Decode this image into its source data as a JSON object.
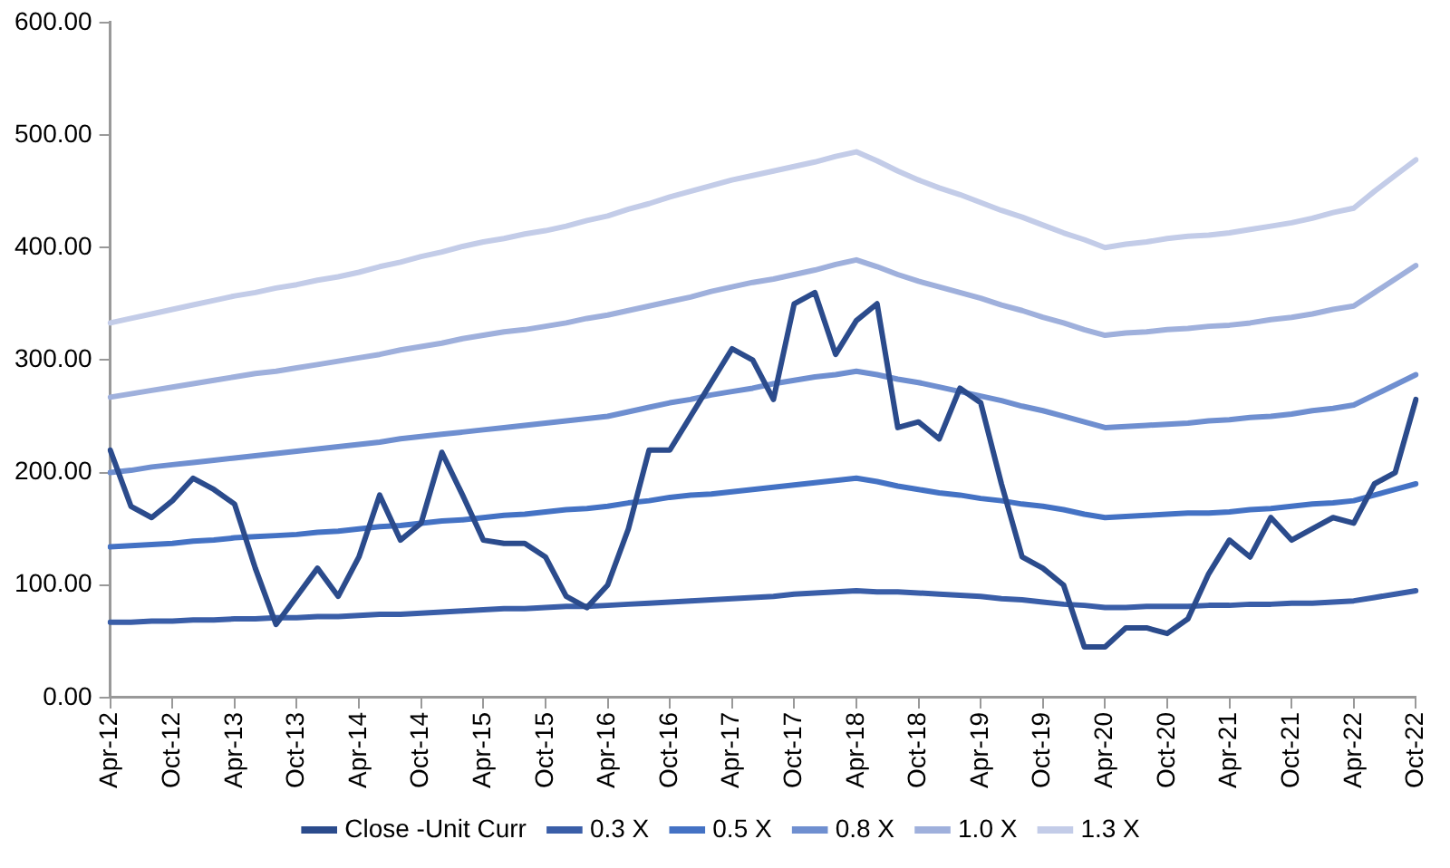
{
  "chart_data": {
    "type": "line",
    "categories": [
      "Apr-12",
      null,
      null,
      "Oct-12",
      null,
      null,
      "Apr-13",
      null,
      null,
      "Oct-13",
      null,
      null,
      "Apr-14",
      null,
      null,
      "Oct-14",
      null,
      null,
      "Apr-15",
      null,
      null,
      "Oct-15",
      null,
      null,
      "Apr-16",
      null,
      null,
      "Oct-16",
      null,
      null,
      "Apr-17",
      null,
      null,
      "Oct-17",
      null,
      null,
      "Apr-18",
      null,
      null,
      "Oct-18",
      null,
      null,
      "Apr-19",
      null,
      null,
      "Oct-19",
      null,
      null,
      "Apr-20",
      null,
      null,
      "Oct-20",
      null,
      null,
      "Apr-21",
      null,
      null,
      "Oct-21",
      null,
      null,
      "Apr-22",
      null,
      null,
      "Oct-22"
    ],
    "series": [
      {
        "name": "Close -Unit Curr",
        "color": "#2b4b8c",
        "values": [
          220,
          170,
          160,
          175,
          195,
          185,
          172,
          115,
          65,
          90,
          115,
          90,
          125,
          180,
          140,
          155,
          218,
          180,
          140,
          137,
          137,
          125,
          90,
          80,
          100,
          150,
          220,
          220,
          250,
          280,
          310,
          300,
          265,
          350,
          360,
          305,
          335,
          350,
          240,
          245,
          230,
          275,
          262,
          190,
          125,
          115,
          100,
          45,
          45,
          62,
          62,
          57,
          70,
          110,
          140,
          125,
          160,
          140,
          150,
          160,
          155,
          190,
          200,
          265
        ]
      },
      {
        "name": "0.3 X",
        "color": "#3a5ea8",
        "values": [
          67,
          67,
          68,
          68,
          69,
          69,
          70,
          70,
          71,
          71,
          72,
          72,
          73,
          74,
          74,
          75,
          76,
          77,
          78,
          79,
          79,
          80,
          81,
          81,
          82,
          83,
          84,
          85,
          86,
          87,
          88,
          89,
          90,
          92,
          93,
          94,
          95,
          94,
          94,
          93,
          92,
          91,
          90,
          88,
          87,
          85,
          83,
          82,
          80,
          80,
          81,
          81,
          81,
          82,
          82,
          83,
          83,
          84,
          84,
          85,
          86,
          89,
          92,
          95
        ]
      },
      {
        "name": "0.5 X",
        "color": "#4472c4",
        "values": [
          134,
          135,
          136,
          137,
          139,
          140,
          142,
          143,
          144,
          145,
          147,
          148,
          150,
          152,
          153,
          155,
          157,
          158,
          160,
          162,
          163,
          165,
          167,
          168,
          170,
          173,
          175,
          178,
          180,
          181,
          183,
          185,
          187,
          189,
          191,
          193,
          195,
          192,
          188,
          185,
          182,
          180,
          177,
          175,
          172,
          170,
          167,
          163,
          160,
          161,
          162,
          163,
          164,
          164,
          165,
          167,
          168,
          170,
          172,
          173,
          175,
          180,
          185,
          190
        ]
      },
      {
        "name": "0.8 X",
        "color": "#6f8fd0",
        "values": [
          200,
          202,
          205,
          207,
          209,
          211,
          213,
          215,
          217,
          219,
          221,
          223,
          225,
          227,
          230,
          232,
          234,
          236,
          238,
          240,
          242,
          244,
          246,
          248,
          250,
          254,
          258,
          262,
          265,
          269,
          272,
          275,
          279,
          282,
          285,
          287,
          290,
          287,
          283,
          280,
          276,
          272,
          268,
          264,
          259,
          255,
          250,
          245,
          240,
          241,
          242,
          243,
          244,
          246,
          247,
          249,
          250,
          252,
          255,
          257,
          260,
          269,
          278,
          287
        ]
      },
      {
        "name": "1.0 X",
        "color": "#9fb0dc",
        "values": [
          267,
          270,
          273,
          276,
          279,
          282,
          285,
          288,
          290,
          293,
          296,
          299,
          302,
          305,
          309,
          312,
          315,
          319,
          322,
          325,
          327,
          330,
          333,
          337,
          340,
          344,
          348,
          352,
          356,
          361,
          365,
          369,
          372,
          376,
          380,
          385,
          389,
          383,
          376,
          370,
          365,
          360,
          355,
          349,
          344,
          338,
          333,
          327,
          322,
          324,
          325,
          327,
          328,
          330,
          331,
          333,
          336,
          338,
          341,
          345,
          348,
          360,
          372,
          384
        ]
      },
      {
        "name": "1.3 X",
        "color": "#c3cce8",
        "values": [
          333,
          337,
          341,
          345,
          349,
          353,
          357,
          360,
          364,
          367,
          371,
          374,
          378,
          383,
          387,
          392,
          396,
          401,
          405,
          408,
          412,
          415,
          419,
          424,
          428,
          434,
          439,
          445,
          450,
          455,
          460,
          464,
          468,
          472,
          476,
          481,
          485,
          477,
          468,
          460,
          453,
          447,
          440,
          433,
          427,
          420,
          413,
          407,
          400,
          403,
          405,
          408,
          410,
          411,
          413,
          416,
          419,
          422,
          426,
          431,
          435,
          450,
          464,
          478
        ]
      }
    ],
    "ylim": [
      0,
      600
    ],
    "yticks": [
      {
        "value": 0,
        "label": "0.00"
      },
      {
        "value": 100,
        "label": "100.00"
      },
      {
        "value": 200,
        "label": "200.00"
      },
      {
        "value": 300,
        "label": "300.00"
      },
      {
        "value": 400,
        "label": "400.00"
      },
      {
        "value": 500,
        "label": "500.00"
      },
      {
        "value": 600,
        "label": "600.00"
      }
    ],
    "legend": "bottom",
    "marker": "none",
    "line_style": "solid"
  }
}
